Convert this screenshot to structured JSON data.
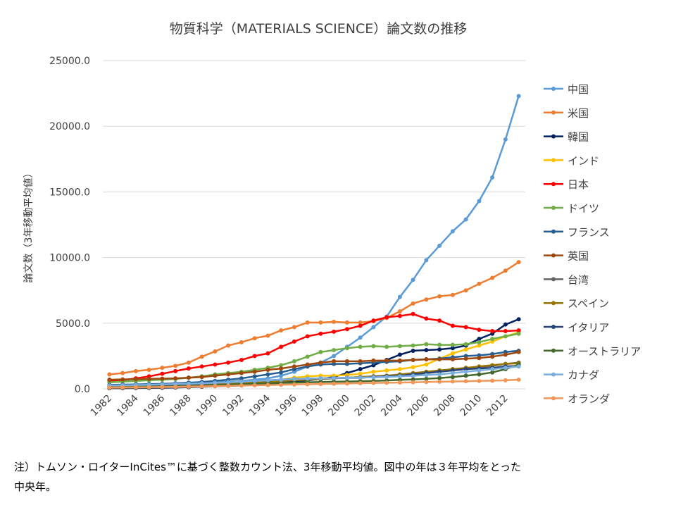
{
  "chart_data": {
    "type": "line",
    "title": "物質科学（MATERIALS SCIENCE）論文数の推移",
    "y_label": "論文数（3年移動平均値）",
    "note": [
      "注）トムソン・ロイターInCites™に基づく整数カウント法、3年移動平均値。図中の年は３年平均をとった",
      "中央年。"
    ],
    "categories": [
      "1982",
      null,
      "1984",
      null,
      "1986",
      null,
      "1988",
      null,
      "1990",
      null,
      "1992",
      null,
      "1994",
      null,
      "1996",
      null,
      "1998",
      null,
      "2000",
      null,
      "2002",
      null,
      "2004",
      null,
      "2006",
      null,
      "2008",
      null,
      "2010",
      null,
      "2012",
      null
    ],
    "ylim": [
      0,
      25000
    ],
    "yticks": [
      {
        "value": 0,
        "label": "0.0"
      },
      {
        "value": 5000,
        "label": "5000.0"
      },
      {
        "value": 10000,
        "label": "10000.0"
      },
      {
        "value": 15000,
        "label": "15000.0"
      },
      {
        "value": 20000,
        "label": "20000.0"
      },
      {
        "value": 25000,
        "label": "25000.0"
      }
    ],
    "grid": true,
    "legend": "right",
    "series": [
      {
        "name": "中国",
        "color": "#5b9bd5",
        "values": [
          200,
          220,
          250,
          280,
          300,
          350,
          400,
          450,
          500,
          550,
          600,
          700,
          800,
          1000,
          1300,
          1700,
          2000,
          2500,
          3200,
          3900,
          4700,
          5500,
          7000,
          8300,
          9800,
          10900,
          12000,
          12900,
          14300,
          16100,
          19000,
          22300
        ]
      },
      {
        "name": "米国",
        "color": "#ed7d31",
        "values": [
          1100,
          1200,
          1350,
          1450,
          1600,
          1750,
          2000,
          2450,
          2850,
          3300,
          3550,
          3850,
          4050,
          4450,
          4700,
          5050,
          5050,
          5100,
          5050,
          5050,
          5150,
          5400,
          5900,
          6500,
          6800,
          7050,
          7150,
          7500,
          8000,
          8450,
          9000,
          9650
        ]
      },
      {
        "name": "韓国",
        "color": "#002060",
        "values": [
          50,
          50,
          60,
          70,
          80,
          100,
          130,
          160,
          200,
          230,
          260,
          300,
          350,
          450,
          550,
          650,
          750,
          900,
          1200,
          1500,
          1800,
          2200,
          2600,
          2900,
          2950,
          3000,
          3100,
          3300,
          3800,
          4200,
          4900,
          5300
        ]
      },
      {
        "name": "インド",
        "color": "#ffc000",
        "values": [
          200,
          220,
          240,
          260,
          280,
          300,
          330,
          360,
          400,
          450,
          500,
          560,
          620,
          700,
          850,
          950,
          1000,
          1000,
          1050,
          1150,
          1300,
          1400,
          1500,
          1650,
          1850,
          2300,
          2700,
          3000,
          3300,
          3600,
          4000,
          4300
        ]
      },
      {
        "name": "日本",
        "color": "#ff0000",
        "values": [
          600,
          650,
          800,
          950,
          1150,
          1350,
          1550,
          1700,
          1850,
          2000,
          2200,
          2500,
          2700,
          3200,
          3600,
          4000,
          4200,
          4350,
          4550,
          4800,
          5200,
          5450,
          5550,
          5700,
          5350,
          5200,
          4800,
          4700,
          4500,
          4400,
          4400,
          4450
        ]
      },
      {
        "name": "ドイツ",
        "color": "#70ad47",
        "values": [
          500,
          550,
          600,
          650,
          700,
          750,
          850,
          950,
          1100,
          1200,
          1300,
          1450,
          1600,
          1800,
          2100,
          2450,
          2800,
          2950,
          3100,
          3200,
          3250,
          3200,
          3250,
          3300,
          3400,
          3350,
          3350,
          3400,
          3550,
          3800,
          4000,
          4200
        ]
      },
      {
        "name": "フランス",
        "color": "#255e91",
        "values": [
          300,
          320,
          340,
          360,
          380,
          420,
          470,
          520,
          600,
          700,
          800,
          950,
          1100,
          1250,
          1500,
          1700,
          1850,
          1900,
          1900,
          1950,
          2000,
          2050,
          2100,
          2200,
          2250,
          2300,
          2400,
          2500,
          2550,
          2650,
          2800,
          2900
        ]
      },
      {
        "name": "英国",
        "color": "#9e480e",
        "values": [
          700,
          720,
          740,
          760,
          780,
          800,
          850,
          900,
          1000,
          1100,
          1200,
          1300,
          1450,
          1550,
          1700,
          1850,
          2000,
          2100,
          2100,
          2100,
          2150,
          2150,
          2150,
          2200,
          2250,
          2250,
          2250,
          2300,
          2350,
          2450,
          2600,
          2800
        ]
      },
      {
        "name": "台湾",
        "color": "#636363",
        "values": [
          50,
          60,
          70,
          80,
          100,
          120,
          150,
          180,
          230,
          280,
          350,
          420,
          500,
          580,
          650,
          700,
          750,
          800,
          850,
          900,
          950,
          1000,
          1050,
          1150,
          1250,
          1350,
          1450,
          1550,
          1650,
          1750,
          1900,
          2000
        ]
      },
      {
        "name": "スペイン",
        "color": "#997300",
        "values": [
          100,
          110,
          130,
          150,
          170,
          200,
          230,
          270,
          320,
          370,
          420,
          480,
          540,
          600,
          650,
          700,
          750,
          800,
          850,
          900,
          950,
          1000,
          1100,
          1200,
          1300,
          1400,
          1500,
          1600,
          1700,
          1800,
          1900,
          1950
        ]
      },
      {
        "name": "イタリア",
        "color": "#264478",
        "values": [
          200,
          220,
          240,
          260,
          280,
          320,
          360,
          400,
          450,
          500,
          550,
          600,
          650,
          700,
          750,
          780,
          800,
          820,
          830,
          850,
          900,
          950,
          1000,
          1100,
          1200,
          1300,
          1400,
          1500,
          1550,
          1600,
          1700,
          1750
        ]
      },
      {
        "name": "オーストラリア",
        "color": "#43682b",
        "values": [
          150,
          160,
          170,
          180,
          200,
          220,
          240,
          260,
          290,
          320,
          350,
          380,
          420,
          450,
          480,
          500,
          520,
          540,
          560,
          580,
          600,
          640,
          680,
          720,
          760,
          820,
          900,
          1000,
          1100,
          1250,
          1500,
          1850
        ]
      },
      {
        "name": "カナダ",
        "color": "#7cafdd",
        "values": [
          250,
          270,
          290,
          310,
          330,
          360,
          390,
          420,
          460,
          500,
          550,
          600,
          650,
          700,
          750,
          780,
          800,
          820,
          840,
          860,
          880,
          900,
          950,
          1000,
          1050,
          1100,
          1200,
          1300,
          1400,
          1500,
          1600,
          1700
        ]
      },
      {
        "name": "オランダ",
        "color": "#f1975a",
        "values": [
          100,
          110,
          120,
          130,
          140,
          150,
          170,
          190,
          210,
          230,
          250,
          270,
          290,
          310,
          330,
          350,
          370,
          390,
          410,
          430,
          450,
          460,
          480,
          500,
          520,
          540,
          560,
          580,
          600,
          620,
          650,
          700
        ]
      }
    ]
  }
}
